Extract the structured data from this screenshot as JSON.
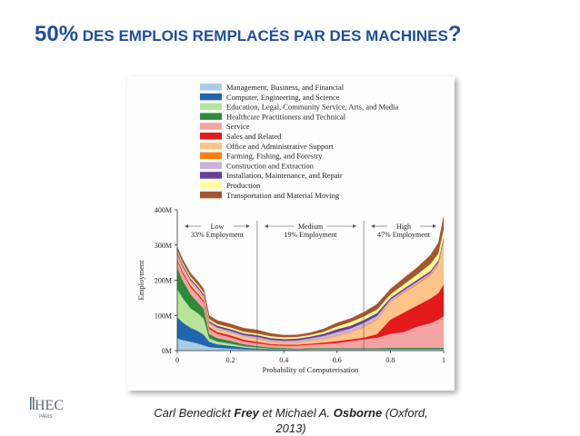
{
  "slide": {
    "title_pct": "50%",
    "title_text": " DES EMPLOIS REMPLACÉS PAR DES MACHINES",
    "title_qmark": "?",
    "title_color": "#1f4e9a"
  },
  "caption": {
    "author1_first": "Carl Benedickt ",
    "author1_last": "Frey",
    "connector": " et Michael A. ",
    "author2_last": "Osborne",
    "source": " (Oxford,",
    "year": "2013)"
  },
  "logo": {
    "text": "HEC",
    "sub": "PARIS",
    "icon": "hec-paris-logo"
  },
  "chart_data": {
    "type": "area",
    "stacked": true,
    "xlabel": "Probability of Computerisation",
    "ylabel": "Employment",
    "xlim": [
      0,
      1
    ],
    "ylim": [
      0,
      400
    ],
    "x_ticks": [
      "0",
      "0.2",
      "0.4",
      "0.6",
      "0.8",
      "1"
    ],
    "y_ticks": [
      "0M",
      "100M",
      "200M",
      "300M",
      "400M"
    ],
    "legend_position": "top",
    "region_boundaries": [
      0.3,
      0.7
    ],
    "regions": [
      {
        "name": "Low",
        "share": "33% Employment"
      },
      {
        "name": "Medium",
        "share": "19% Employment"
      },
      {
        "name": "High",
        "share": "47% Employment"
      }
    ],
    "x": [
      0,
      0.02,
      0.05,
      0.08,
      0.1,
      0.12,
      0.15,
      0.2,
      0.25,
      0.3,
      0.35,
      0.4,
      0.45,
      0.5,
      0.55,
      0.6,
      0.65,
      0.7,
      0.75,
      0.8,
      0.85,
      0.9,
      0.95,
      0.98,
      1
    ],
    "series": [
      {
        "name": "Management, Business, and Financial",
        "color": "#a9cce3",
        "values": [
          35,
          30,
          25,
          20,
          15,
          10,
          8,
          6,
          4,
          3,
          2,
          2,
          2,
          3,
          3,
          3,
          3,
          3,
          3,
          3,
          3,
          3,
          3,
          3,
          3
        ]
      },
      {
        "name": "Computer, Engineering, and Science",
        "color": "#2166ac",
        "values": [
          60,
          50,
          40,
          35,
          30,
          15,
          10,
          8,
          5,
          3,
          2,
          2,
          1,
          1,
          1,
          1,
          1,
          1,
          1,
          1,
          1,
          1,
          1,
          1,
          1
        ]
      },
      {
        "name": "Education, Legal, Community Service, Arts, and Media",
        "color": "#b7e39b",
        "values": [
          80,
          70,
          55,
          50,
          45,
          10,
          8,
          6,
          4,
          3,
          2,
          2,
          1,
          1,
          1,
          1,
          1,
          1,
          1,
          1,
          1,
          1,
          1,
          1,
          1
        ]
      },
      {
        "name": "Healthcare Practitioners and Technical",
        "color": "#2e8b3a",
        "values": [
          60,
          50,
          40,
          30,
          28,
          12,
          10,
          8,
          5,
          4,
          3,
          2,
          2,
          2,
          2,
          2,
          2,
          2,
          2,
          3,
          3,
          3,
          3,
          3,
          3
        ]
      },
      {
        "name": "Service",
        "color": "#f4a3a3",
        "values": [
          20,
          20,
          20,
          20,
          18,
          15,
          12,
          10,
          8,
          8,
          7,
          6,
          8,
          10,
          12,
          15,
          20,
          25,
          30,
          40,
          45,
          60,
          70,
          80,
          90
        ]
      },
      {
        "name": "Sales and Related",
        "color": "#e3191c",
        "values": [
          5,
          5,
          5,
          5,
          5,
          5,
          5,
          5,
          5,
          4,
          3,
          3,
          3,
          3,
          4,
          5,
          5,
          5,
          10,
          40,
          55,
          60,
          70,
          75,
          90
        ]
      },
      {
        "name": "Office and Administrative Support",
        "color": "#fcc48a",
        "values": [
          10,
          10,
          10,
          10,
          8,
          8,
          8,
          8,
          8,
          8,
          6,
          5,
          5,
          8,
          10,
          15,
          20,
          30,
          40,
          50,
          55,
          60,
          65,
          80,
          120
        ]
      },
      {
        "name": "Farming, Fishing, and Forestry",
        "color": "#ff7f0e",
        "values": [
          0,
          0,
          0,
          0,
          0,
          0,
          0,
          0,
          0,
          1,
          1,
          1,
          1,
          1,
          1,
          1,
          1,
          2,
          2,
          2,
          3,
          3,
          3,
          3,
          3
        ]
      },
      {
        "name": "Construction and Extraction",
        "color": "#cab2d6",
        "values": [
          5,
          5,
          5,
          5,
          5,
          5,
          5,
          5,
          5,
          5,
          5,
          5,
          6,
          6,
          8,
          10,
          10,
          10,
          10,
          5,
          5,
          5,
          5,
          5,
          5
        ]
      },
      {
        "name": "Installation, Maintenance, and Repair",
        "color": "#6a3d9a",
        "values": [
          5,
          5,
          5,
          5,
          5,
          5,
          5,
          5,
          5,
          5,
          5,
          5,
          5,
          5,
          6,
          8,
          8,
          8,
          8,
          5,
          5,
          5,
          5,
          5,
          5
        ]
      },
      {
        "name": "Production",
        "color": "#ffff99",
        "values": [
          5,
          5,
          5,
          5,
          5,
          5,
          5,
          5,
          5,
          5,
          5,
          5,
          5,
          5,
          6,
          8,
          10,
          10,
          10,
          10,
          12,
          15,
          20,
          20,
          25
        ]
      },
      {
        "name": "Transportation and Material Moving",
        "color": "#a6542c",
        "values": [
          10,
          10,
          10,
          10,
          10,
          10,
          10,
          10,
          10,
          10,
          8,
          6,
          6,
          6,
          8,
          10,
          10,
          12,
          15,
          15,
          18,
          20,
          25,
          30,
          35
        ]
      }
    ]
  }
}
